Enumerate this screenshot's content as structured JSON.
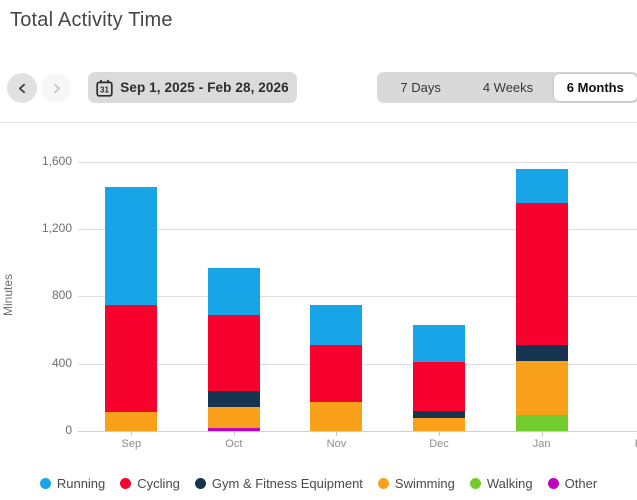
{
  "header": {
    "title": "Total Activity Time"
  },
  "controls": {
    "prev_button": "previous-period",
    "next_button": "next-period",
    "date_range": "Sep 1, 2025 - Feb 28, 2026",
    "tabs": [
      {
        "label": "7 Days",
        "active": false
      },
      {
        "label": "4 Weeks",
        "active": false
      },
      {
        "label": "6 Months",
        "active": true
      }
    ]
  },
  "chart_data": {
    "type": "bar",
    "stacked": true,
    "title": "Total Activity Time",
    "ylabel": "Minutes",
    "categories": [
      "Sep",
      "Oct",
      "Nov",
      "Dec",
      "Jan",
      "Feb"
    ],
    "series": [
      {
        "name": "Running",
        "color": "#18a5e8",
        "values": [
          700,
          280,
          240,
          220,
          200,
          null
        ]
      },
      {
        "name": "Cycling",
        "color": "#f7012f",
        "values": [
          640,
          455,
          335,
          290,
          845,
          null
        ]
      },
      {
        "name": "Gym & Fitness Equipment",
        "color": "#16344f",
        "values": [
          0,
          95,
          0,
          40,
          95,
          null
        ]
      },
      {
        "name": "Swimming",
        "color": "#f9a11b",
        "values": [
          110,
          125,
          175,
          80,
          320,
          null
        ]
      },
      {
        "name": "Walking",
        "color": "#72cc2e",
        "values": [
          0,
          0,
          0,
          0,
          95,
          null
        ]
      },
      {
        "name": "Other",
        "color": "#c003c0",
        "values": [
          0,
          15,
          0,
          0,
          0,
          null
        ]
      }
    ],
    "stack_order_bottom_to_top": [
      "Other",
      "Walking",
      "Swimming",
      "Gym & Fitness Equipment",
      "Cycling",
      "Running"
    ],
    "totals": [
      1450,
      970,
      750,
      630,
      1555,
      null
    ],
    "yticks": [
      0,
      400,
      800,
      1200,
      1600
    ],
    "ytick_labels": [
      "0",
      "400",
      "800",
      "1,200",
      "1,600"
    ],
    "ylim": [
      0,
      1700
    ],
    "grid": true,
    "legend_position": "bottom"
  }
}
